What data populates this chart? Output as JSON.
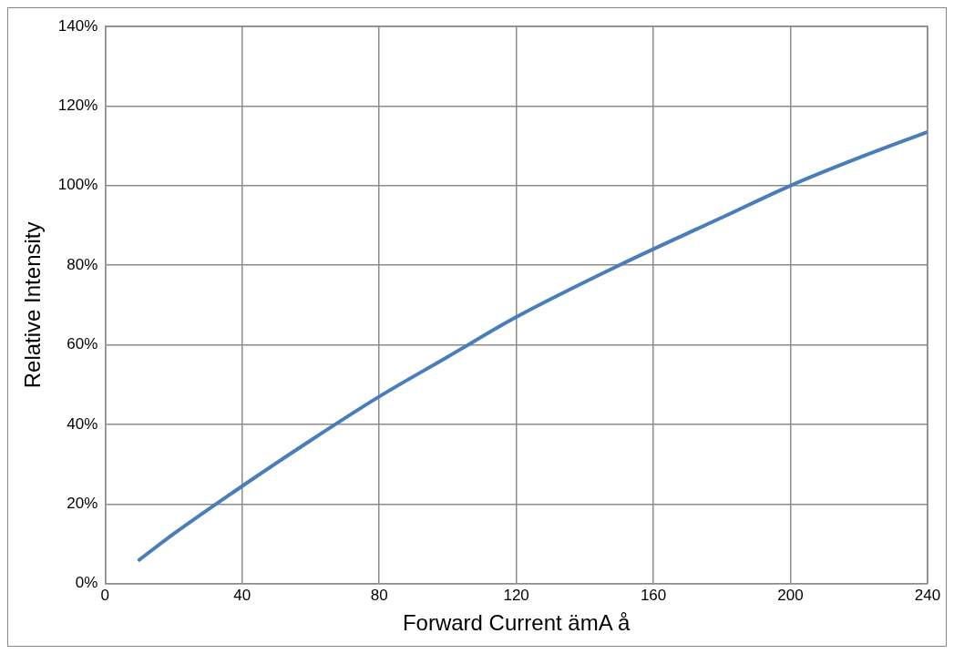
{
  "chart_data": {
    "type": "line",
    "xlabel": "Forward Current ämA å",
    "ylabel": "Relative Intensity",
    "x": [
      10,
      20,
      40,
      60,
      80,
      100,
      120,
      150,
      180,
      200,
      220,
      240
    ],
    "series": [
      {
        "color": "#4a7ebb",
        "values": [
          6,
          12.5,
          24.5,
          36,
          47,
          57,
          67,
          80,
          92,
          100,
          107,
          113.5
        ]
      }
    ],
    "xlim": [
      0,
      240
    ],
    "xticks": [
      0,
      40,
      80,
      120,
      160,
      200,
      240
    ],
    "ylim": [
      0,
      140
    ],
    "yticks": [
      {
        "value": 0,
        "label": "0%"
      },
      {
        "value": 20,
        "label": "20%"
      },
      {
        "value": 40,
        "label": "40%"
      },
      {
        "value": 60,
        "label": "60%"
      },
      {
        "value": 80,
        "label": "80%"
      },
      {
        "value": 100,
        "label": "100%"
      },
      {
        "value": 120,
        "label": "120%"
      },
      {
        "value": 140,
        "label": "140%"
      }
    ],
    "grid": true,
    "legend": false,
    "marker": "none",
    "line_style": "solid"
  }
}
